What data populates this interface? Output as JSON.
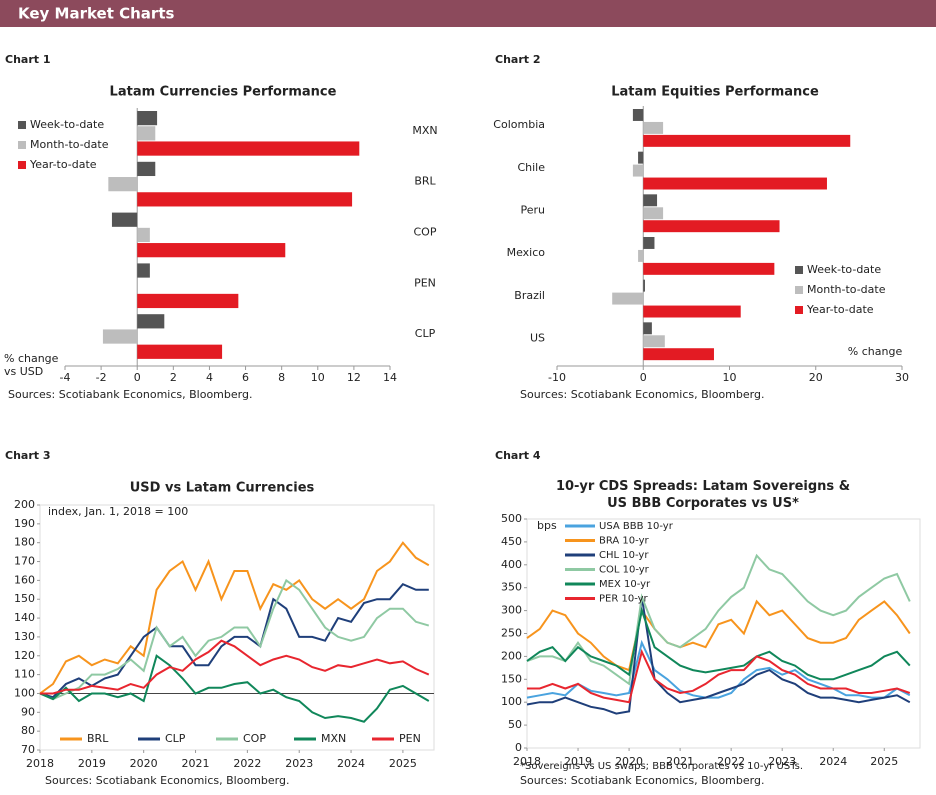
{
  "header": {
    "title": "Key Market Charts"
  },
  "chart_data": [
    {
      "type": "hbar",
      "label": "Chart 1",
      "title": "Latam Currencies Performance",
      "xlabel": "% change vs USD",
      "source": "Sources: Scotiabank Economics, Bloomberg.",
      "categories": [
        "MXN",
        "BRL",
        "COP",
        "PEN",
        "CLP"
      ],
      "series": [
        {
          "name": "Week-to-date",
          "color": "#555555",
          "values": [
            1.1,
            1.0,
            -1.4,
            0.7,
            1.5
          ]
        },
        {
          "name": "Month-to-date",
          "color": "#bdbdbd",
          "values": [
            1.0,
            -1.6,
            0.7,
            0,
            -1.9
          ]
        },
        {
          "name": "Year-to-date",
          "color": "#e31b23",
          "values": [
            12.3,
            11.9,
            8.2,
            5.6,
            4.7
          ]
        }
      ],
      "xlim": [
        -4,
        14
      ],
      "xticks": [
        -4,
        -2,
        0,
        2,
        4,
        6,
        8,
        10,
        12,
        14
      ],
      "legend": "upper left"
    },
    {
      "type": "hbar",
      "label": "Chart 2",
      "title": "Latam Equities Performance",
      "xlabel": "% change",
      "source": "Sources: Scotiabank Economics, Bloomberg.",
      "categories": [
        "Colombia",
        "Chile",
        "Peru",
        "Mexico",
        "Brazil",
        "US"
      ],
      "series": [
        {
          "name": "Week-to-date",
          "color": "#555555",
          "values": [
            -1.2,
            -0.6,
            1.6,
            1.3,
            0.2,
            1.0
          ]
        },
        {
          "name": "Month-to-date",
          "color": "#bdbdbd",
          "values": [
            2.3,
            -1.2,
            2.3,
            -0.6,
            -3.6,
            2.5
          ]
        },
        {
          "name": "Year-to-date",
          "color": "#e31b23",
          "values": [
            24.0,
            21.3,
            15.8,
            15.2,
            11.3,
            8.2
          ]
        }
      ],
      "xlim": [
        -10,
        30
      ],
      "xticks": [
        -10,
        0,
        10,
        20,
        30
      ],
      "legend": "lower right"
    },
    {
      "type": "line",
      "label": "Chart 3",
      "title": "USD vs Latam Currencies",
      "annotation": "index, Jan. 1, 2018 = 100",
      "source": "Sources: Scotiabank Economics, Bloomberg.",
      "refline": 100,
      "x": [
        2018,
        2018.25,
        2018.5,
        2018.75,
        2019,
        2019.25,
        2019.5,
        2019.75,
        2020,
        2020.25,
        2020.5,
        2020.75,
        2021,
        2021.25,
        2021.5,
        2021.75,
        2022,
        2022.25,
        2022.5,
        2022.75,
        2023,
        2023.25,
        2023.5,
        2023.75,
        2024,
        2024.25,
        2024.5,
        2024.75,
        2025,
        2025.25,
        2025.5
      ],
      "series": [
        {
          "name": "BRL",
          "color": "#f7941d",
          "values": [
            100,
            105,
            117,
            120,
            115,
            118,
            116,
            125,
            120,
            155,
            165,
            170,
            155,
            170,
            150,
            165,
            165,
            145,
            158,
            155,
            160,
            150,
            145,
            150,
            145,
            150,
            165,
            170,
            180,
            172,
            168
          ]
        },
        {
          "name": "CLP",
          "color": "#1f3f7a",
          "values": [
            100,
            98,
            105,
            108,
            104,
            108,
            110,
            120,
            130,
            135,
            125,
            125,
            115,
            115,
            125,
            130,
            130,
            125,
            150,
            145,
            130,
            130,
            128,
            140,
            138,
            148,
            150,
            150,
            158,
            155,
            155
          ]
        },
        {
          "name": "COP",
          "color": "#8fc9a3",
          "values": [
            100,
            97,
            100,
            103,
            110,
            110,
            113,
            118,
            112,
            135,
            125,
            130,
            120,
            128,
            130,
            135,
            135,
            125,
            145,
            160,
            155,
            145,
            135,
            130,
            128,
            130,
            140,
            145,
            145,
            138,
            136
          ]
        },
        {
          "name": "MXN",
          "color": "#10875a",
          "values": [
            100,
            97,
            103,
            96,
            100,
            100,
            98,
            100,
            96,
            120,
            115,
            108,
            100,
            103,
            103,
            105,
            106,
            100,
            102,
            98,
            96,
            90,
            87,
            88,
            87,
            85,
            92,
            102,
            104,
            100,
            96
          ]
        },
        {
          "name": "PEN",
          "color": "#e8262f",
          "values": [
            100,
            100,
            102,
            102,
            104,
            103,
            102,
            105,
            103,
            110,
            114,
            112,
            118,
            122,
            128,
            125,
            120,
            115,
            118,
            120,
            118,
            114,
            112,
            115,
            114,
            116,
            118,
            116,
            117,
            113,
            110
          ]
        }
      ],
      "xlim": [
        2018,
        2025.6
      ],
      "xticks": [
        2018,
        2019,
        2020,
        2021,
        2022,
        2023,
        2024,
        2025
      ],
      "ylim": [
        70,
        200
      ],
      "yticks": [
        70,
        80,
        90,
        100,
        110,
        120,
        130,
        140,
        150,
        160,
        170,
        180,
        190,
        200
      ],
      "legend": "lower center"
    },
    {
      "type": "line",
      "label": "Chart 4",
      "title": "10-yr CDS Spreads: Latam Sovereigns & US BBB Corporates vs US*",
      "annotation": "bps",
      "footnote": "*Sovereigns vs US swaps; BBB corporates vs 10-yr USTs.",
      "source": "Sources: Scotiabank Economics, Bloomberg.",
      "x": [
        2018,
        2018.25,
        2018.5,
        2018.75,
        2019,
        2019.25,
        2019.5,
        2019.75,
        2020,
        2020.25,
        2020.5,
        2020.75,
        2021,
        2021.25,
        2021.5,
        2021.75,
        2022,
        2022.25,
        2022.5,
        2022.75,
        2023,
        2023.25,
        2023.5,
        2023.75,
        2024,
        2024.25,
        2024.5,
        2024.75,
        2025,
        2025.25,
        2025.5
      ],
      "series": [
        {
          "name": "USA BBB 10-yr",
          "color": "#4aa3df",
          "values": [
            110,
            115,
            120,
            115,
            140,
            125,
            120,
            115,
            120,
            230,
            170,
            150,
            125,
            115,
            110,
            110,
            120,
            150,
            170,
            175,
            160,
            170,
            150,
            140,
            130,
            115,
            115,
            110,
            110,
            130,
            115
          ]
        },
        {
          "name": "BRA 10-yr",
          "color": "#f7941d",
          "values": [
            240,
            260,
            300,
            290,
            250,
            230,
            200,
            180,
            170,
            300,
            260,
            230,
            220,
            230,
            220,
            270,
            280,
            250,
            320,
            290,
            300,
            270,
            240,
            230,
            230,
            240,
            280,
            300,
            320,
            290,
            250
          ]
        },
        {
          "name": "CHL 10-yr",
          "color": "#1f3f7a",
          "values": [
            95,
            100,
            100,
            110,
            100,
            90,
            85,
            75,
            80,
            330,
            150,
            120,
            100,
            105,
            110,
            120,
            130,
            140,
            160,
            170,
            150,
            140,
            120,
            110,
            110,
            105,
            100,
            105,
            110,
            115,
            100
          ]
        },
        {
          "name": "COL 10-yr",
          "color": "#8fc9a3",
          "values": [
            190,
            200,
            200,
            190,
            230,
            190,
            180,
            160,
            140,
            330,
            260,
            230,
            220,
            240,
            260,
            300,
            330,
            350,
            420,
            390,
            380,
            350,
            320,
            300,
            290,
            300,
            330,
            350,
            370,
            380,
            320
          ]
        },
        {
          "name": "MEX 10-yr",
          "color": "#10875a",
          "values": [
            190,
            210,
            220,
            190,
            220,
            200,
            190,
            180,
            160,
            300,
            220,
            200,
            180,
            170,
            165,
            170,
            175,
            180,
            200,
            210,
            190,
            180,
            160,
            150,
            150,
            160,
            170,
            180,
            200,
            210,
            180
          ]
        },
        {
          "name": "PER 10-yr",
          "color": "#e8262f",
          "values": [
            130,
            130,
            140,
            130,
            140,
            120,
            110,
            105,
            100,
            210,
            150,
            130,
            120,
            125,
            140,
            160,
            170,
            170,
            200,
            190,
            170,
            160,
            140,
            130,
            130,
            130,
            120,
            120,
            125,
            130,
            120
          ]
        }
      ],
      "xlim": [
        2018,
        2025.7
      ],
      "xticks": [
        2018,
        2019,
        2020,
        2021,
        2022,
        2023,
        2024,
        2025
      ],
      "ylim": [
        0,
        500
      ],
      "yticks": [
        0,
        50,
        100,
        150,
        200,
        250,
        300,
        350,
        400,
        450,
        500
      ],
      "legend": "upper left"
    }
  ]
}
